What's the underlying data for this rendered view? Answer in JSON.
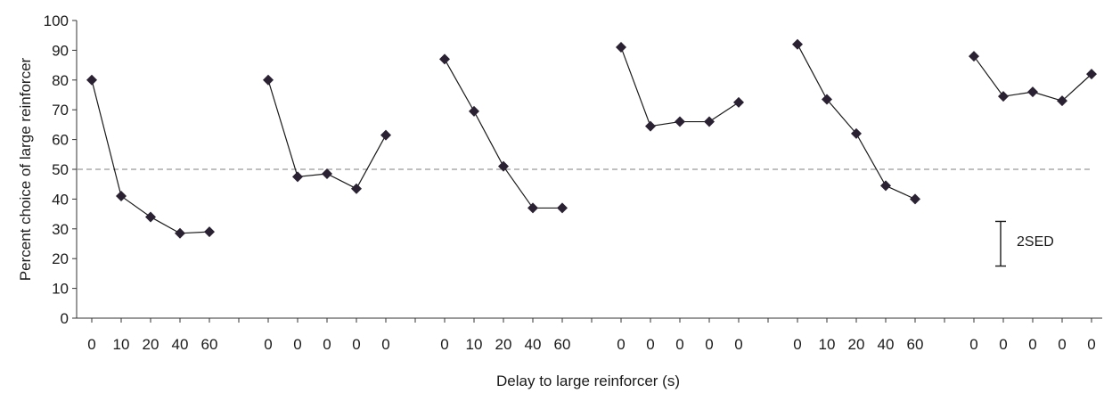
{
  "chart_data": {
    "type": "line",
    "title": "",
    "xlabel": "Delay to large reinforcer (s)",
    "ylabel": "Percent choice of large reinforcer",
    "ylim": [
      0,
      100
    ],
    "yticks": [
      0,
      10,
      20,
      30,
      40,
      50,
      60,
      70,
      80,
      90,
      100
    ],
    "grid": false,
    "legend": "none",
    "reference_line": {
      "y": 50,
      "style": "dashed"
    },
    "error_bar": {
      "label": "2SED",
      "low": 17.5,
      "high": 32.5
    },
    "categories": [
      "0",
      "10",
      "20",
      "40",
      "60",
      "0",
      "0",
      "0",
      "0",
      "0",
      "0",
      "10",
      "20",
      "40",
      "60",
      "0",
      "0",
      "0",
      "0",
      "0",
      "0",
      "10",
      "20",
      "40",
      "60",
      "0",
      "0",
      "0",
      "0",
      "0"
    ],
    "series": [
      {
        "x": [
          "0",
          "10",
          "20",
          "40",
          "60"
        ],
        "values": [
          80,
          41,
          34,
          28.5,
          29
        ]
      },
      {
        "x": [
          "0",
          "0",
          "0",
          "0",
          "0"
        ],
        "values": [
          80,
          47.5,
          48.5,
          43.5,
          61.5
        ]
      },
      {
        "x": [
          "0",
          "10",
          "20",
          "40",
          "60"
        ],
        "values": [
          87,
          69.5,
          51,
          37,
          37
        ]
      },
      {
        "x": [
          "0",
          "0",
          "0",
          "0",
          "0"
        ],
        "values": [
          91,
          64.5,
          66,
          66,
          72.5
        ]
      },
      {
        "x": [
          "0",
          "10",
          "20",
          "40",
          "60"
        ],
        "values": [
          92,
          73.5,
          62,
          44.5,
          40
        ]
      },
      {
        "x": [
          "0",
          "0",
          "0",
          "0",
          "0"
        ],
        "values": [
          88,
          74.5,
          76,
          73,
          82
        ]
      }
    ],
    "colors": {
      "line": "#1a1a1a",
      "marker": "#2a2133",
      "axis": "#333333",
      "reference": "#7f7f7f"
    }
  }
}
